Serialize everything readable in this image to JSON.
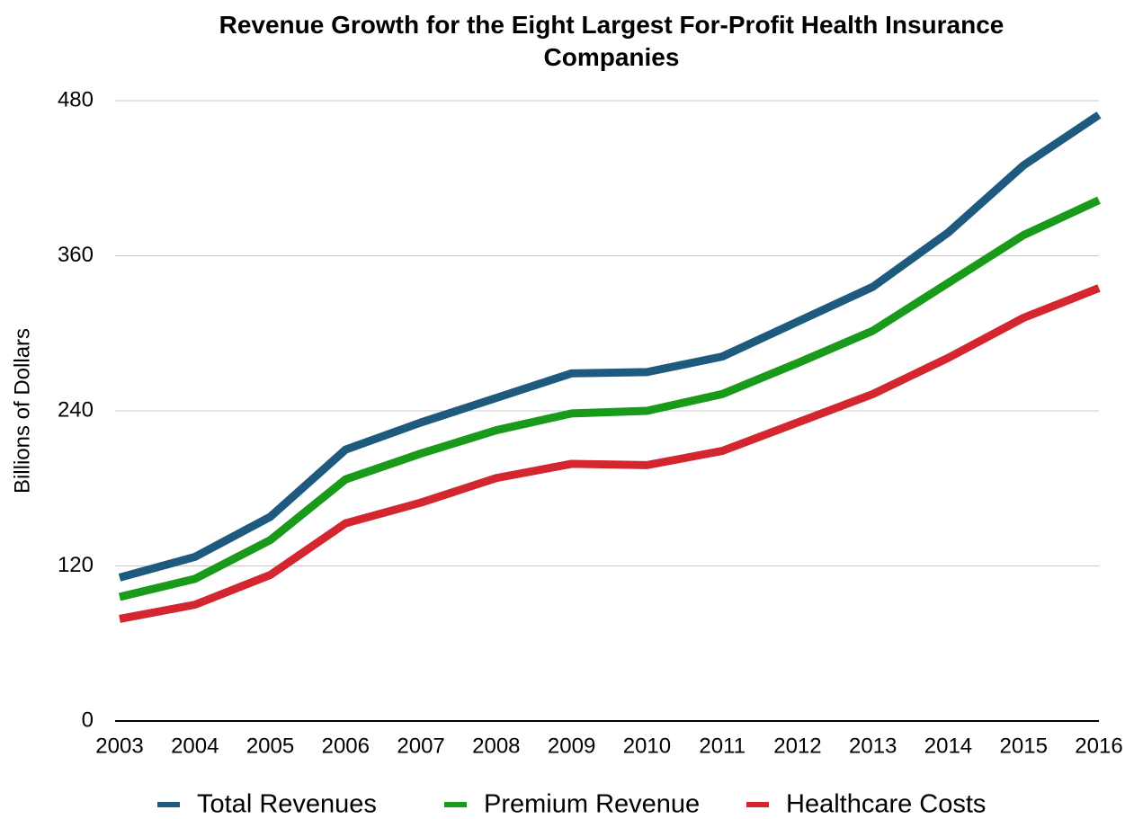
{
  "chart_data": {
    "type": "line",
    "title": "Revenue Growth for the Eight Largest For-Profit Health Insurance Companies",
    "y_label": "Billions of Dollars",
    "categories": [
      "2003",
      "2004",
      "2005",
      "2006",
      "2007",
      "2008",
      "2009",
      "2010",
      "2011",
      "2012",
      "2013",
      "2014",
      "2015",
      "2016"
    ],
    "series": [
      {
        "name": "Total Revenues",
        "color": "#1d5a7e",
        "values": [
          111,
          127,
          158,
          210,
          231,
          250,
          269,
          270,
          282,
          309,
          336,
          378,
          430,
          469
        ]
      },
      {
        "name": "Premium Revenue",
        "color": "#1a9a1a",
        "values": [
          96,
          110,
          140,
          187,
          207,
          225,
          238,
          240,
          253,
          277,
          302,
          339,
          376,
          403
        ]
      },
      {
        "name": "Healthcare Costs",
        "color": "#d3262e",
        "values": [
          79,
          90,
          113,
          153,
          169,
          188,
          199,
          198,
          209,
          231,
          253,
          281,
          312,
          335
        ]
      }
    ],
    "ylim": [
      0,
      480
    ],
    "yticks": [
      0,
      120,
      240,
      360,
      480
    ],
    "grid": true,
    "legend": "bottom"
  }
}
